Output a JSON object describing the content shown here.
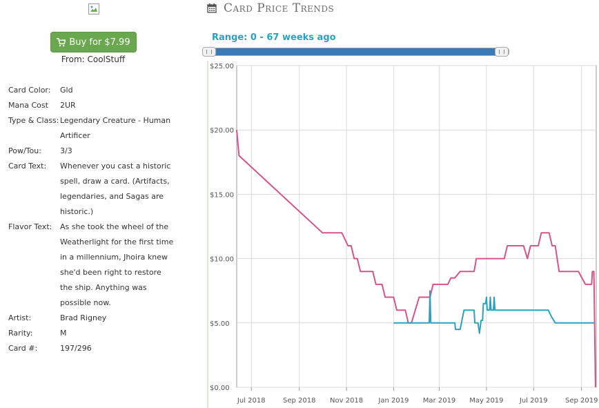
{
  "left": {
    "buy_label": "Buy for $7.99",
    "from_label": "From: CoolStuff",
    "details": [
      {
        "key": "Card Color:",
        "value": "Gld"
      },
      {
        "key": "Mana Cost",
        "value": "2UR"
      },
      {
        "key": "Type & Class:",
        "value": "Legendary Creature - Human Artificer"
      },
      {
        "key": "Pow/Tou:",
        "value": "3/3"
      },
      {
        "key": "Card Text:",
        "value": "Whenever you cast a historic spell, draw a card. (Artifacts, legendaries, and Sagas are historic.)"
      },
      {
        "key": "Flavor Text:",
        "value": "As she took the wheel of the Weatherlight for the first time in a millennium, Jhoira knew she'd been right to restore the ship. Anything was possible now."
      },
      {
        "key": "Artist:",
        "value": "Brad Rigney"
      },
      {
        "key": "Rarity:",
        "value": "M"
      },
      {
        "key": "Card #:",
        "value": "197/296"
      }
    ]
  },
  "chart_header": {
    "title": "Card Price Trends",
    "range_label": "Range: 0 - 67 weeks ago",
    "icon": "calendar-icon"
  },
  "chart_data": {
    "type": "line",
    "title": "Card Price Trends",
    "xlabel": "",
    "ylabel": "",
    "ylim": [
      0,
      25
    ],
    "y_ticks": [
      "$0.00",
      "$5.00",
      "$10.00",
      "$15.00",
      "$20.00",
      "$25.00"
    ],
    "x_ticks": [
      "Jul 2018",
      "Sep 2018",
      "Nov 2018",
      "Jan 2019",
      "Mar 2019",
      "May 2019",
      "Jul 2019",
      "Sep 2019"
    ],
    "x_tick_dates": [
      "2018-07-01",
      "2018-09-01",
      "2018-11-01",
      "2019-01-01",
      "2019-03-01",
      "2019-05-01",
      "2019-07-01",
      "2019-09-01"
    ],
    "xlim": [
      "2018-06-12",
      "2019-09-20"
    ],
    "grid": true,
    "series": [
      {
        "color": "#d6538a",
        "points": [
          [
            "2018-06-12",
            20
          ],
          [
            "2018-06-15",
            18
          ],
          [
            "2018-10-01",
            12
          ],
          [
            "2018-10-26",
            12
          ],
          [
            "2018-11-03",
            11
          ],
          [
            "2018-11-07",
            11
          ],
          [
            "2018-11-11",
            10
          ],
          [
            "2018-11-15",
            10
          ],
          [
            "2018-11-19",
            9
          ],
          [
            "2018-12-05",
            9
          ],
          [
            "2018-12-09",
            8
          ],
          [
            "2018-12-17",
            8
          ],
          [
            "2018-12-21",
            7
          ],
          [
            "2019-01-01",
            7
          ],
          [
            "2019-01-05",
            6
          ],
          [
            "2019-01-16",
            6
          ],
          [
            "2019-01-20",
            5
          ],
          [
            "2019-01-24",
            5
          ],
          [
            "2019-02-03",
            7
          ],
          [
            "2019-02-17",
            7
          ],
          [
            "2019-02-21",
            8
          ],
          [
            "2019-03-12",
            8
          ],
          [
            "2019-03-16",
            8.5
          ],
          [
            "2019-03-21",
            8.5
          ],
          [
            "2019-03-28",
            9
          ],
          [
            "2019-04-15",
            9
          ],
          [
            "2019-04-18",
            10
          ],
          [
            "2019-05-24",
            10
          ],
          [
            "2019-05-28",
            11
          ],
          [
            "2019-06-18",
            11
          ],
          [
            "2019-06-23",
            10
          ],
          [
            "2019-06-27",
            11
          ],
          [
            "2019-07-07",
            11
          ],
          [
            "2019-07-11",
            12
          ],
          [
            "2019-07-21",
            12
          ],
          [
            "2019-07-25",
            11
          ],
          [
            "2019-07-29",
            11
          ],
          [
            "2019-08-03",
            9
          ],
          [
            "2019-08-28",
            9
          ],
          [
            "2019-09-06",
            8
          ],
          [
            "2019-09-14",
            8
          ],
          [
            "2019-09-15",
            9
          ],
          [
            "2019-09-17",
            9
          ],
          [
            "2019-09-19",
            0
          ]
        ]
      },
      {
        "color": "#2aa1be",
        "points": [
          [
            "2019-01-01",
            5
          ],
          [
            "2019-02-16",
            5
          ],
          [
            "2019-02-17",
            7.5
          ],
          [
            "2019-02-18",
            5
          ],
          [
            "2019-03-21",
            5
          ],
          [
            "2019-03-22",
            4.5
          ],
          [
            "2019-03-28",
            4.5
          ],
          [
            "2019-04-02",
            6
          ],
          [
            "2019-04-15",
            6
          ],
          [
            "2019-04-16",
            5
          ],
          [
            "2019-04-20",
            5
          ],
          [
            "2019-04-22",
            4.2
          ],
          [
            "2019-04-24",
            5.2
          ],
          [
            "2019-04-26",
            5.2
          ],
          [
            "2019-04-27",
            6.5
          ],
          [
            "2019-04-30",
            6.5
          ],
          [
            "2019-05-01",
            7
          ],
          [
            "2019-05-02",
            6
          ],
          [
            "2019-05-05",
            6
          ],
          [
            "2019-05-06",
            7
          ],
          [
            "2019-05-07",
            6
          ],
          [
            "2019-05-10",
            6
          ],
          [
            "2019-05-11",
            7
          ],
          [
            "2019-05-12",
            6
          ],
          [
            "2019-07-20",
            6
          ],
          [
            "2019-07-24",
            5.5
          ],
          [
            "2019-07-29",
            5
          ],
          [
            "2019-09-17",
            5
          ]
        ]
      }
    ]
  }
}
